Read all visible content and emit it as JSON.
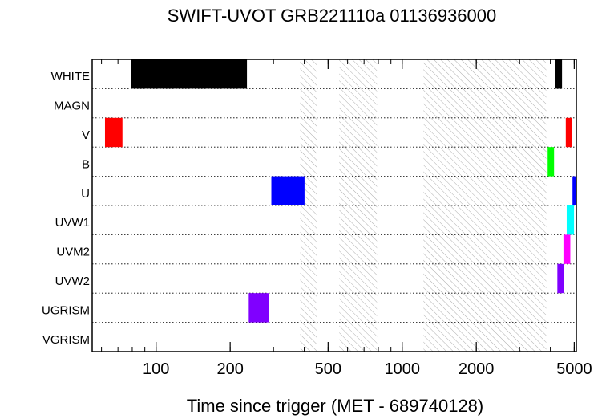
{
  "chart_data": {
    "type": "bar",
    "title": "SWIFT-UVOT GRB221110a 01136936000",
    "xlabel": "Time since trigger (MET - 689740128)",
    "ylabel": "",
    "x_scale": "log",
    "xlim": [
      55,
      5100
    ],
    "x_ticks": [
      100,
      200,
      500,
      1000,
      2000,
      5000
    ],
    "x_tick_labels": [
      "100",
      "200",
      "500",
      "1000",
      "2000",
      "5000"
    ],
    "categories": [
      "WHITE",
      "MAGN",
      "V",
      "B",
      "U",
      "UVW1",
      "UVM2",
      "UVW2",
      "UGRISM",
      "VGRISM"
    ],
    "gaps": [
      {
        "start": 385,
        "end": 450
      },
      {
        "start": 555,
        "end": 790
      },
      {
        "start": 1220,
        "end": 3850
      }
    ],
    "exposures": [
      {
        "filter": "WHITE",
        "start": 79,
        "end": 234,
        "color": "#000000"
      },
      {
        "filter": "WHITE",
        "start": 4180,
        "end": 4460,
        "color": "#000000"
      },
      {
        "filter": "V",
        "start": 62,
        "end": 73,
        "color": "#ff0000"
      },
      {
        "filter": "V",
        "start": 4620,
        "end": 4880,
        "color": "#ff0000"
      },
      {
        "filter": "B",
        "start": 3900,
        "end": 4140,
        "color": "#00ff00"
      },
      {
        "filter": "U",
        "start": 294,
        "end": 401,
        "color": "#0000ff"
      },
      {
        "filter": "U",
        "start": 4920,
        "end": 5090,
        "color": "#0000ff"
      },
      {
        "filter": "UVW1",
        "start": 4660,
        "end": 4990,
        "color": "#00ffff"
      },
      {
        "filter": "UVM2",
        "start": 4520,
        "end": 4820,
        "color": "#ff00ff"
      },
      {
        "filter": "UVW2",
        "start": 4270,
        "end": 4540,
        "color": "#8000ff"
      },
      {
        "filter": "UGRISM",
        "start": 238,
        "end": 288,
        "color": "#8000ff"
      }
    ]
  }
}
